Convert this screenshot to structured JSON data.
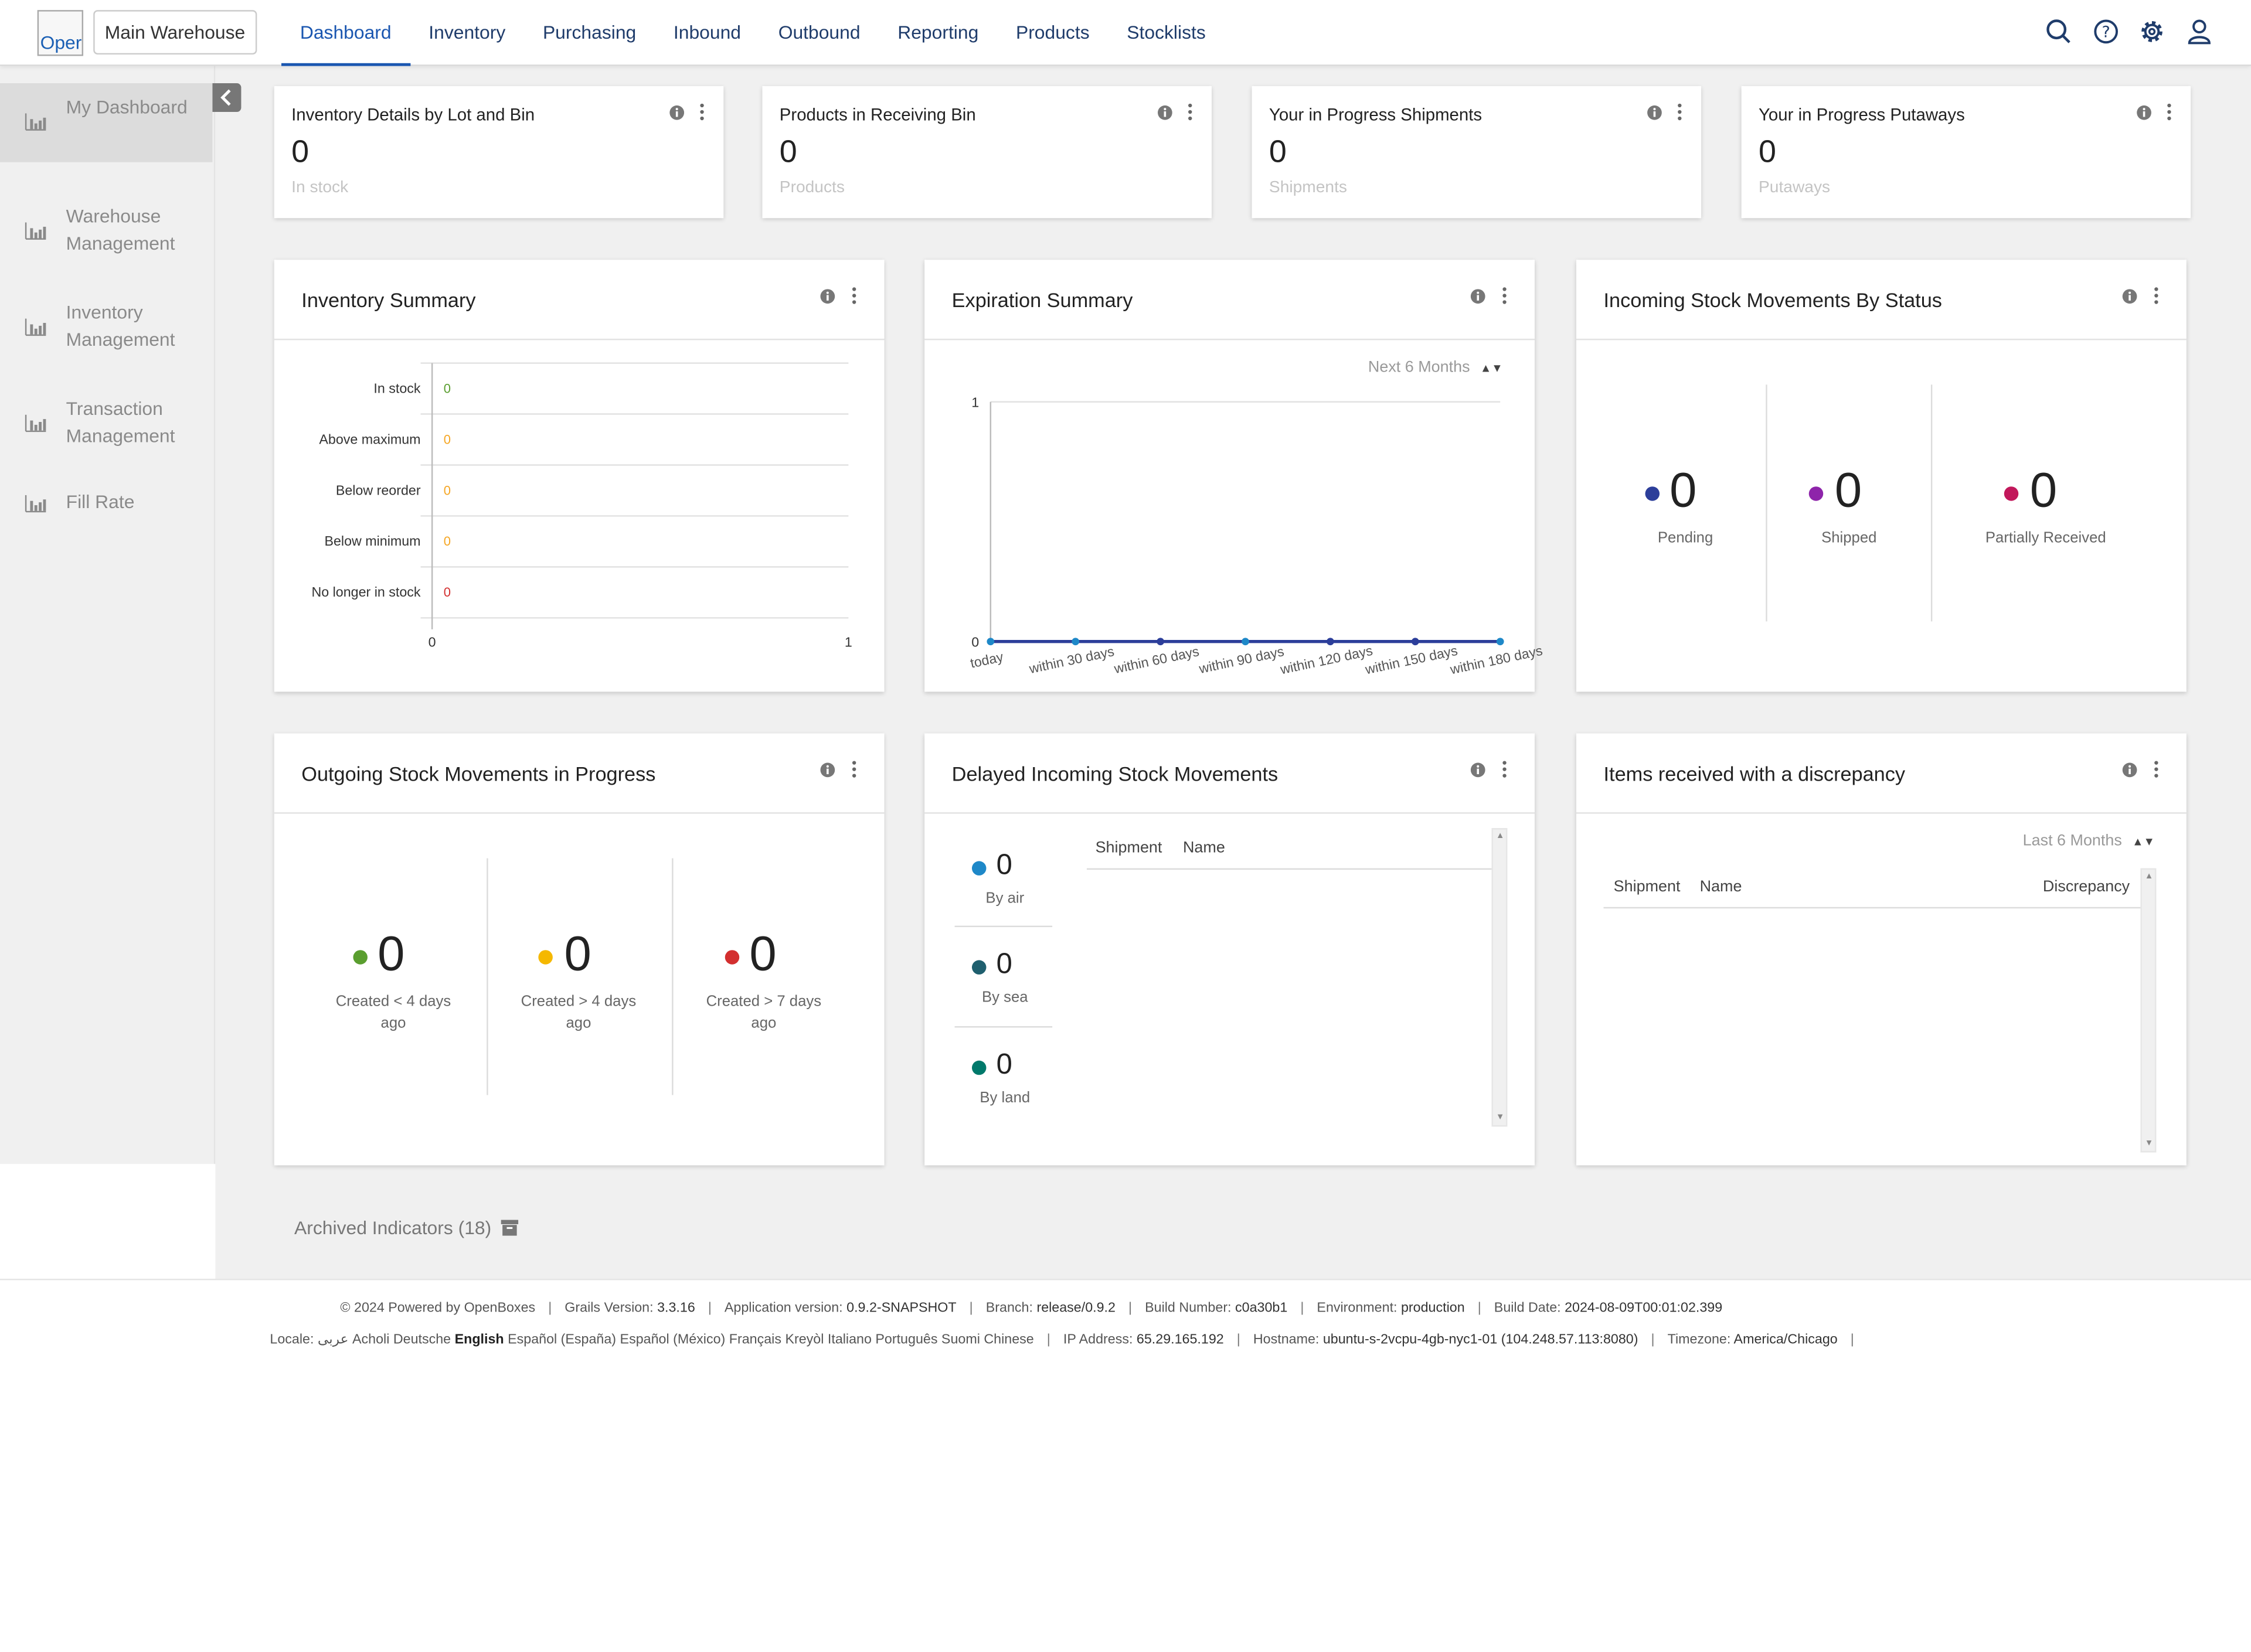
{
  "header": {
    "logo_alt": "Oper",
    "location": "Main Warehouse",
    "nav": [
      "Dashboard",
      "Inventory",
      "Purchasing",
      "Inbound",
      "Outbound",
      "Reporting",
      "Products",
      "Stocklists"
    ],
    "active_nav": "Dashboard",
    "icons": [
      "search-icon",
      "help-icon",
      "gear-icon",
      "user-icon"
    ]
  },
  "sidebar": {
    "items": [
      {
        "label": "My Dashboard",
        "icon": "bar-chart-icon",
        "active": true
      },
      {
        "label": "Warehouse Management",
        "icon": "bar-chart-icon"
      },
      {
        "label": "Inventory Management",
        "icon": "bar-chart-icon"
      },
      {
        "label": "Transaction Management",
        "icon": "bar-chart-icon"
      },
      {
        "label": "Fill Rate",
        "icon": "bar-chart-icon"
      }
    ]
  },
  "number_cards": [
    {
      "title": "Inventory Details by Lot and Bin",
      "value": "0",
      "sub": "In stock"
    },
    {
      "title": "Products in Receiving Bin",
      "value": "0",
      "sub": "Products"
    },
    {
      "title": "Your in Progress Shipments",
      "value": "0",
      "sub": "Shipments"
    },
    {
      "title": "Your in Progress Putaways",
      "value": "0",
      "sub": "Putaways"
    }
  ],
  "inventory_summary": {
    "title": "Inventory Summary"
  },
  "expiration_summary": {
    "title": "Expiration Summary",
    "period": "Next 6 Months"
  },
  "incoming_status": {
    "title": "Incoming Stock Movements By Status",
    "stats": [
      {
        "value": "0",
        "label": "Pending",
        "color": "#2c3e9a"
      },
      {
        "value": "0",
        "label": "Shipped",
        "color": "#8e24aa"
      },
      {
        "value": "0",
        "label": "Partially Received",
        "color": "#c2185b"
      }
    ]
  },
  "outgoing": {
    "title": "Outgoing Stock Movements in Progress",
    "stats": [
      {
        "value": "0",
        "label_1": "Created < 4 days",
        "label_2": "ago",
        "color": "#5a9e2f"
      },
      {
        "value": "0",
        "label_1": "Created > 4 days",
        "label_2": "ago",
        "color": "#f5b800"
      },
      {
        "value": "0",
        "label_1": "Created > 7 days",
        "label_2": "ago",
        "color": "#d32f2f"
      }
    ]
  },
  "delayed": {
    "title": "Delayed Incoming Stock Movements",
    "stats": [
      {
        "value": "0",
        "label": "By air",
        "color": "#1e88c8"
      },
      {
        "value": "0",
        "label": "By sea",
        "color": "#1f5f6e"
      },
      {
        "value": "0",
        "label": "By land",
        "color": "#00796b"
      }
    ],
    "columns": [
      "Shipment",
      "Name"
    ]
  },
  "discrepancy": {
    "title": "Items received with a discrepancy",
    "period": "Last 6 Months",
    "columns": [
      "Shipment",
      "Name",
      "Discrepancy"
    ]
  },
  "archived": "Archived Indicators (18)",
  "footer": {
    "copyright": "© 2024 Powered by OpenBoxes",
    "grails_label": "Grails Version:",
    "grails": "3.3.16",
    "app_label": "Application version:",
    "app": "0.9.2-SNAPSHOT",
    "branch_label": "Branch:",
    "branch": "release/0.9.2",
    "build_label": "Build Number:",
    "build": "c0a30b1",
    "env_label": "Environment:",
    "env": "production",
    "date_label": "Build Date:",
    "date": "2024-08-09T00:01:02.399",
    "locale_label": "Locale:",
    "locales": [
      "عربى",
      "Acholi",
      "Deutsche",
      "English",
      "Español (España)",
      "Español (México)",
      "Français",
      "Kreyòl",
      "Italiano",
      "Português",
      "Suomi",
      "Chinese"
    ],
    "active_locale": "English",
    "ip_label": "IP Address:",
    "ip": "65.29.165.192",
    "host_label": "Hostname:",
    "host": "ubuntu-s-2vcpu-4gb-nyc1-01 (104.248.57.113:8080)",
    "tz_label": "Timezone:",
    "tz": "America/Chicago"
  },
  "chart_data": [
    {
      "type": "bar",
      "orientation": "horizontal",
      "categories": [
        "In stock",
        "Above maximum",
        "Below reorder",
        "Below minimum",
        "No longer in stock"
      ],
      "values": [
        0,
        0,
        0,
        0,
        0
      ],
      "value_colors": [
        "#5a9e2f",
        "#f5a623",
        "#f5a623",
        "#f5a623",
        "#d32f2f"
      ],
      "xlim": [
        0,
        1
      ],
      "x_ticks": [
        "0",
        "1"
      ]
    },
    {
      "type": "line",
      "categories": [
        "today",
        "within 30 days",
        "within 60 days",
        "within 90 days",
        "within 120 days",
        "within 150 days",
        "within 180 days"
      ],
      "series": [
        {
          "values": [
            0,
            0,
            0,
            0,
            0,
            0,
            0
          ],
          "color": "#2c3e9a"
        }
      ],
      "point_colors": [
        "#1e88c8",
        "#1e88c8",
        "#2c3e9a",
        "#1e88c8",
        "#2c3e9a",
        "#2c3e9a",
        "#1e88c8"
      ],
      "ylim": [
        0,
        1
      ],
      "y_ticks": [
        "0",
        "1"
      ]
    }
  ]
}
